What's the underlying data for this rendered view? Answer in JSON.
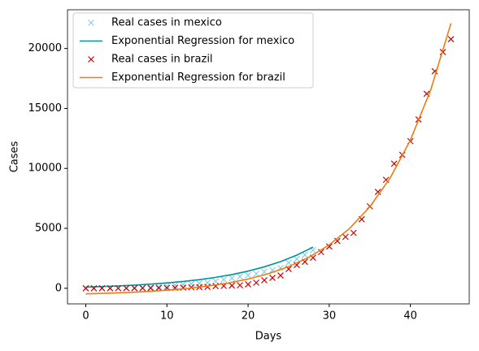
{
  "chart_data": {
    "type": "line",
    "xlabel": "Days",
    "ylabel": "Cases",
    "xlim": [
      -2.25,
      47.25
    ],
    "xticks": [
      0,
      10,
      20,
      30,
      40
    ],
    "ylim": [
      -1300,
      23230
    ],
    "yticks": [
      0,
      5000,
      10000,
      15000,
      20000
    ],
    "legend": "upper left",
    "series": [
      {
        "name": "Real cases in mexico",
        "color": "#87ceeb",
        "style": "marker",
        "x": [
          0,
          1,
          2,
          3,
          4,
          5,
          6,
          7,
          8,
          9,
          10,
          11,
          12,
          13,
          14,
          15,
          16,
          17,
          18,
          19,
          20,
          21,
          22,
          23,
          24,
          25,
          26,
          27,
          28
        ],
        "values": [
          5,
          5,
          7,
          7,
          11,
          26,
          41,
          53,
          82,
          118,
          164,
          251,
          316,
          367,
          405,
          475,
          585,
          717,
          848,
          993,
          1094,
          1215,
          1378,
          1510,
          1688,
          2143,
          2439,
          2785,
          3181
        ]
      },
      {
        "name": "Exponential Regression for mexico",
        "color": "#00939a",
        "style": "line",
        "x": [
          0,
          2,
          4,
          6,
          8,
          10,
          12,
          14,
          16,
          18,
          20,
          22,
          24,
          26,
          28
        ],
        "values": [
          100,
          144,
          197,
          263,
          345,
          446,
          570,
          723,
          912,
          1145,
          1433,
          1787,
          2226,
          2765,
          3433
        ]
      },
      {
        "name": "Real cases in brazil",
        "color": "#cc0000",
        "style": "marker",
        "x": [
          0,
          1,
          2,
          3,
          4,
          5,
          6,
          7,
          8,
          9,
          10,
          11,
          12,
          13,
          14,
          15,
          16,
          17,
          18,
          19,
          20,
          21,
          22,
          23,
          24,
          25,
          26,
          27,
          28,
          29,
          30,
          31,
          32,
          33,
          34,
          35,
          36,
          37,
          38,
          39,
          40,
          41,
          42,
          43,
          44,
          45
        ],
        "values": [
          1,
          1,
          2,
          3,
          5,
          8,
          10,
          15,
          20,
          25,
          30,
          40,
          60,
          80,
          100,
          120,
          180,
          200,
          230,
          250,
          330,
          470,
          670,
          870,
          1070,
          1610,
          1940,
          2210,
          2550,
          3020,
          3480,
          3950,
          4290,
          4620,
          5760,
          6840,
          8040,
          9050,
          10390,
          11130,
          12270,
          14080,
          16220,
          18100,
          19700,
          20780
        ]
      },
      {
        "name": "Exponential Regression for brazil",
        "color": "#f07a10",
        "style": "line",
        "x": [
          0,
          2.5,
          5,
          7.5,
          10,
          12.5,
          15,
          17.5,
          20,
          22.5,
          25,
          27.5,
          30,
          32.5,
          35,
          37.5,
          40,
          42.5,
          45
        ],
        "values": [
          -465,
          -418,
          -355,
          -272,
          -161,
          -16,
          177,
          432,
          769,
          1215,
          1805,
          2587,
          3620,
          4987,
          6797,
          9192,
          12358,
          16543,
          22100
        ]
      }
    ]
  }
}
